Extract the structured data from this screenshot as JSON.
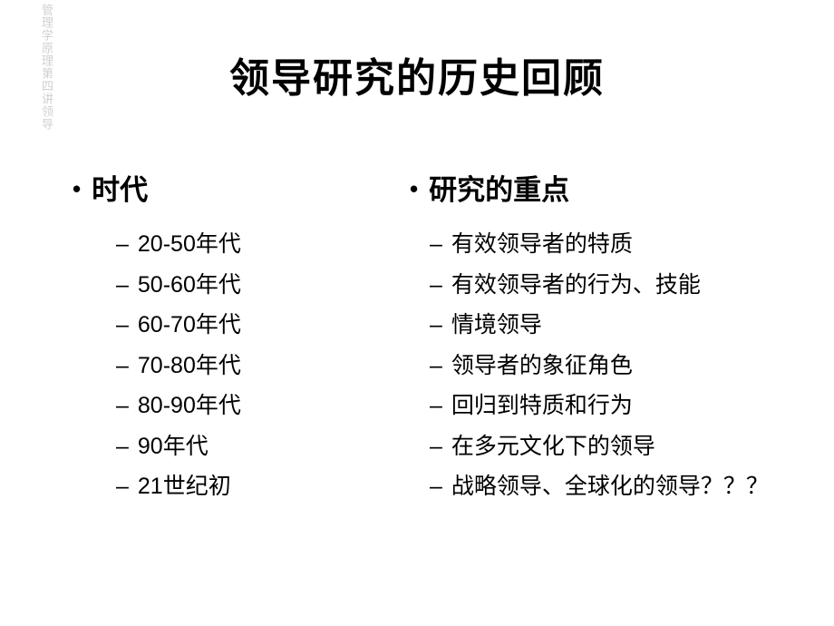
{
  "watermark": "管理学原理第四讲领导",
  "title": "领导研究的历史回顾",
  "left": {
    "header": "时代",
    "items": [
      "20-50年代",
      "50-60年代",
      "60-70年代",
      "70-80年代",
      "80-90年代",
      "90年代",
      "21世纪初"
    ]
  },
  "right": {
    "header": "研究的重点",
    "items": [
      "有效领导者的特质",
      "有效领导者的行为、技能",
      "情境领导",
      "领导者的象征角色",
      "回归到特质和行为",
      "在多元文化下的领导",
      "战略领导、全球化的领导？？？"
    ]
  },
  "colors": {
    "background": "#ffffff",
    "text": "#000000",
    "watermark": "#d0d0d0"
  },
  "typography": {
    "title_fontsize": 44,
    "header_fontsize": 31,
    "item_fontsize": 25,
    "font_family": "SimHei"
  }
}
